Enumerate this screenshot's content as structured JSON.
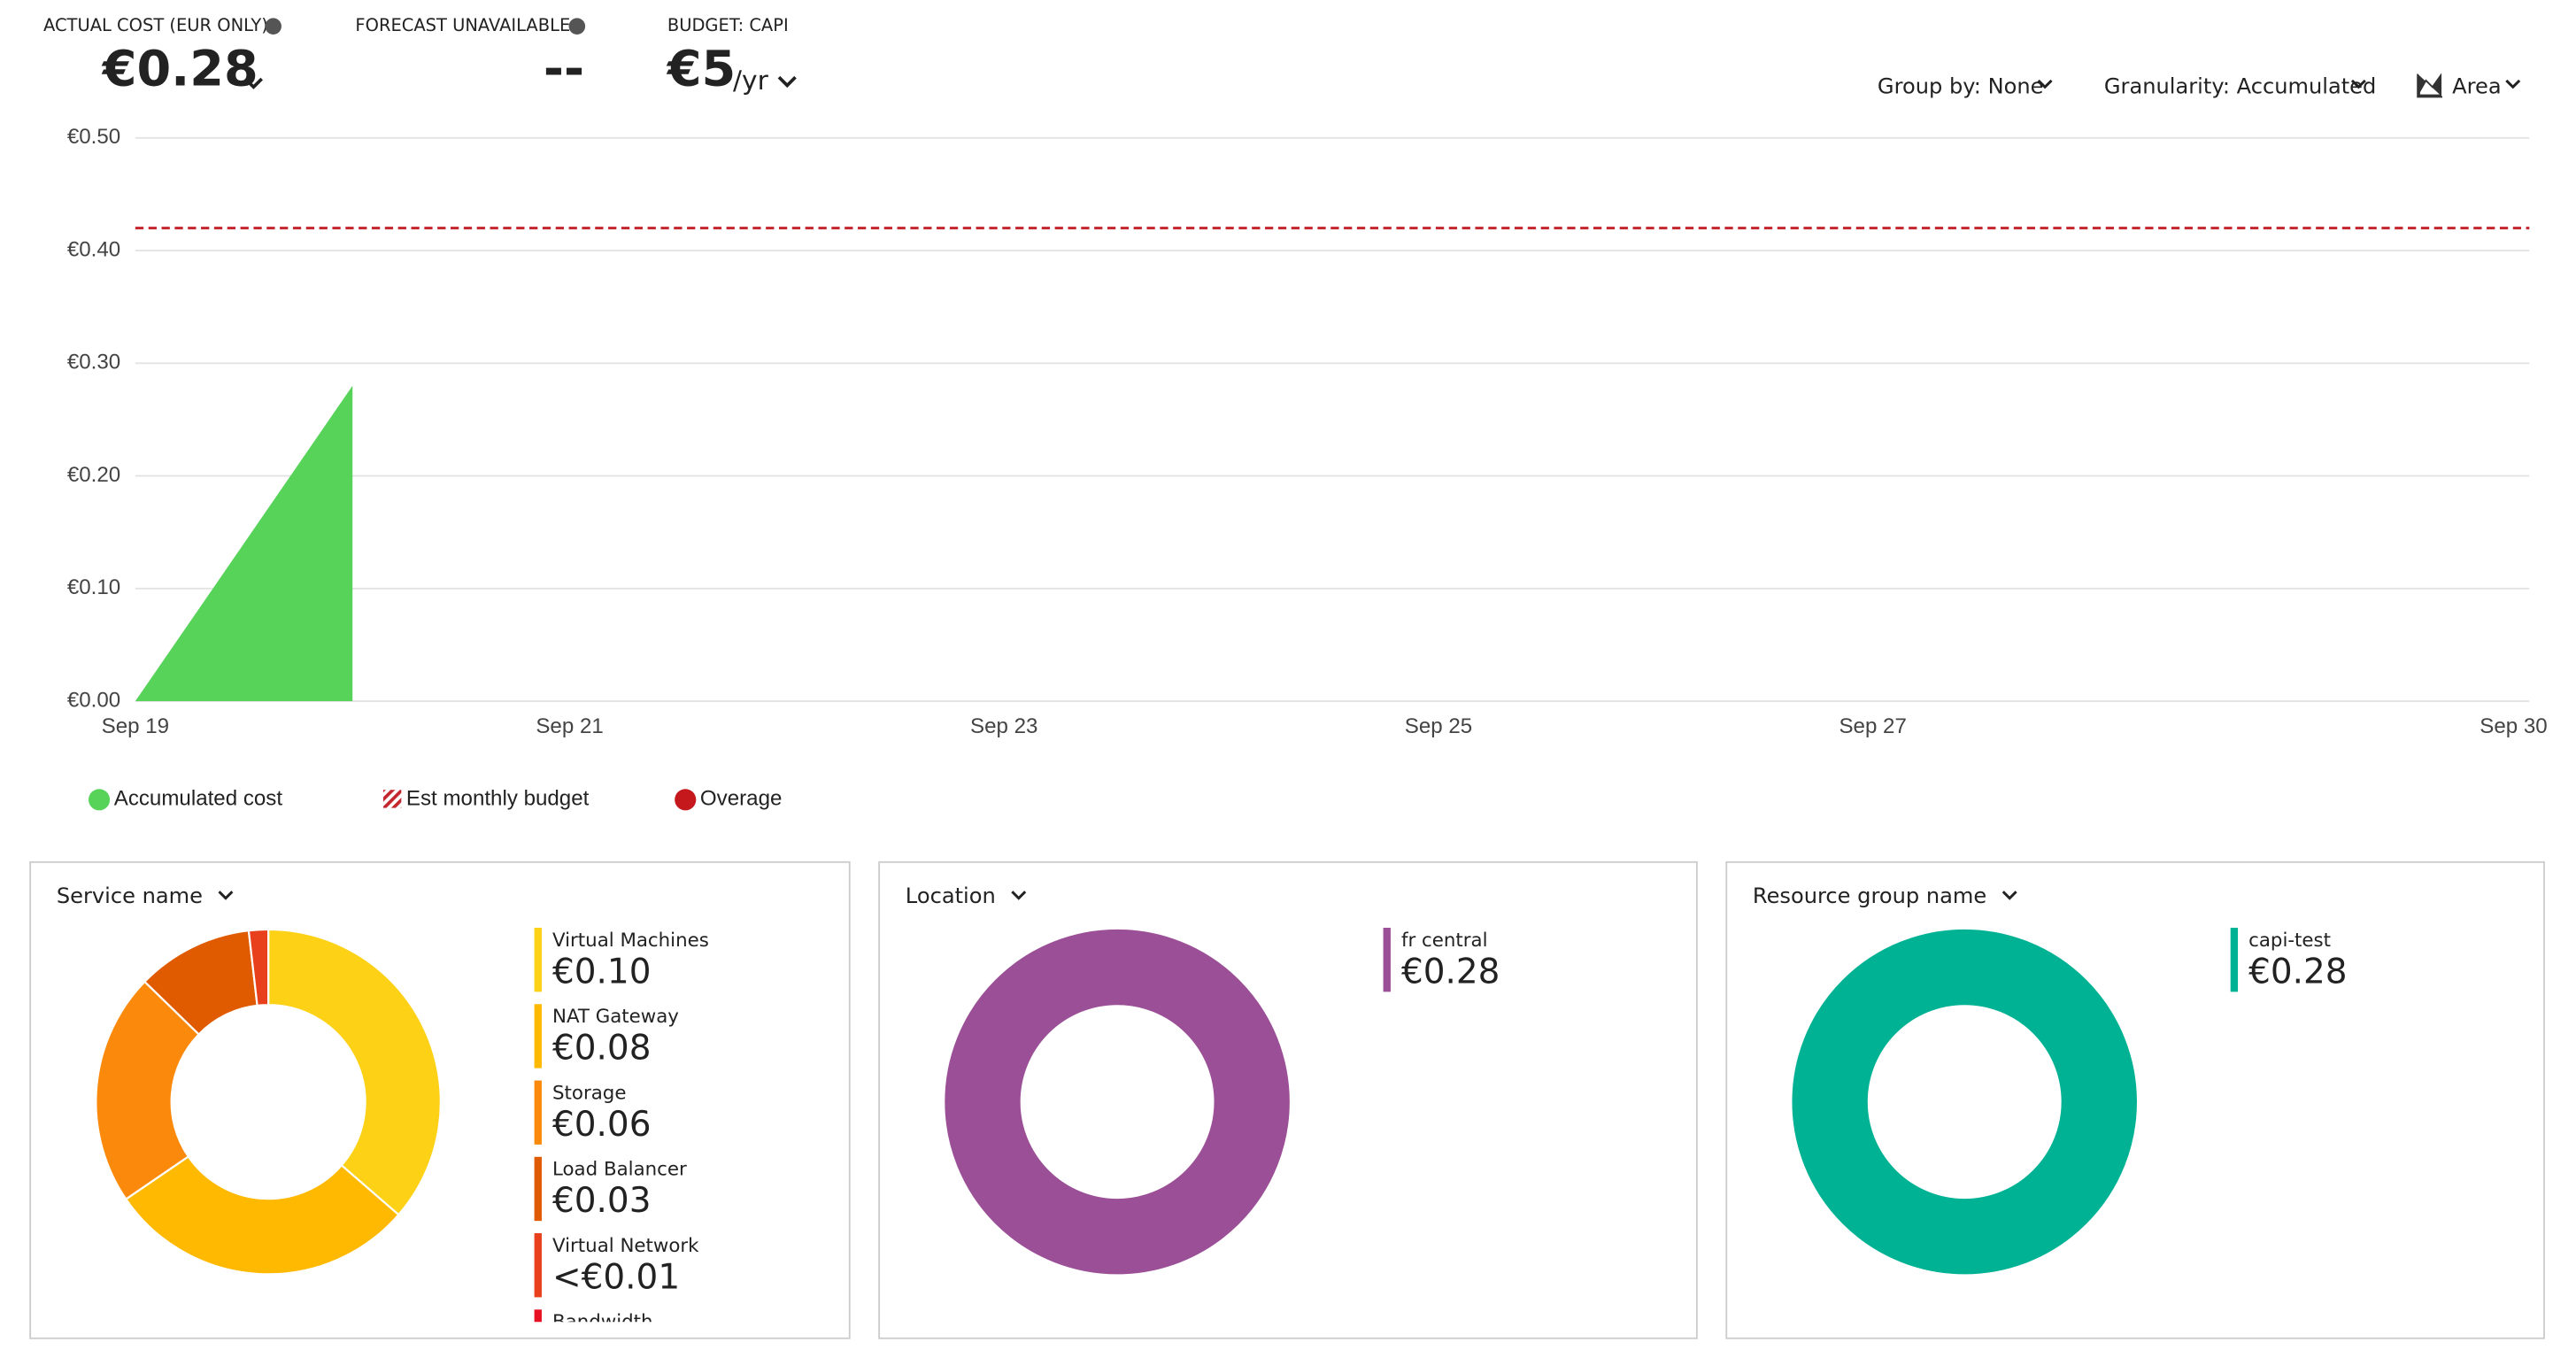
{
  "header": {
    "kpis": [
      {
        "label": "ACTUAL COST (EUR ONLY)",
        "value": "€0.28"
      },
      {
        "label": "FORECAST UNAVAILABLE",
        "value": "--"
      },
      {
        "label": "BUDGET: CAPI",
        "value": "€5",
        "unit": "/yr"
      }
    ],
    "controls": [
      "Group by: None",
      "Granularity: Accumulated",
      "Area"
    ]
  },
  "chart_data": [
    {
      "type": "area",
      "x": [
        19,
        20
      ],
      "xlim": [
        19,
        30
      ],
      "xticks": [
        {
          "value": 19,
          "label": "Sep 19"
        },
        {
          "value": 21,
          "label": "Sep 21"
        },
        {
          "value": 23,
          "label": "Sep 23"
        },
        {
          "value": 25,
          "label": "Sep 25"
        },
        {
          "value": 27,
          "label": "Sep 27"
        },
        {
          "value": 30,
          "label": "Sep 30"
        }
      ],
      "ylim": [
        0,
        0.5
      ],
      "yticks": [
        {
          "value": 0,
          "label": "€0.00"
        },
        {
          "value": 0.1,
          "label": "€0.10"
        },
        {
          "value": 0.2,
          "label": "€0.20"
        },
        {
          "value": 0.3,
          "label": "€0.30"
        },
        {
          "value": 0.4,
          "label": "€0.40"
        },
        {
          "value": 0.5,
          "label": "€0.50"
        }
      ],
      "grid": true,
      "series": [
        {
          "name": "Accumulated cost",
          "color": "#57d35a",
          "values": [
            0,
            0.28
          ]
        }
      ],
      "budget": {
        "name": "Est monthly budget",
        "color": "#c4262e",
        "value": 0.42
      },
      "overage": {
        "name": "Overage",
        "color": "#c4181d"
      }
    },
    {
      "type": "pie",
      "title": "Service name",
      "categories": [
        "Virtual Machines",
        "NAT Gateway",
        "Storage",
        "Load Balancer",
        "Virtual Network",
        "Bandwidth"
      ],
      "values": [
        0.1,
        0.08,
        0.06,
        0.03,
        0.005,
        null
      ],
      "value_labels": [
        "€0.10",
        "€0.08",
        "€0.06",
        "€0.03",
        "<€0.01",
        null
      ],
      "colors": [
        "#fcd116",
        "#ffb900",
        "#fb8a0c",
        "#e05a00",
        "#e8401c",
        "#e81123"
      ]
    },
    {
      "type": "pie",
      "title": "Location",
      "categories": [
        "fr central"
      ],
      "values": [
        0.28
      ],
      "value_labels": [
        "€0.28"
      ],
      "colors": [
        "#9b4f96"
      ]
    },
    {
      "type": "pie",
      "title": "Resource group name",
      "categories": [
        "capi-test"
      ],
      "values": [
        0.28
      ],
      "value_labels": [
        "€0.28"
      ],
      "colors": [
        "#00b294"
      ]
    }
  ]
}
